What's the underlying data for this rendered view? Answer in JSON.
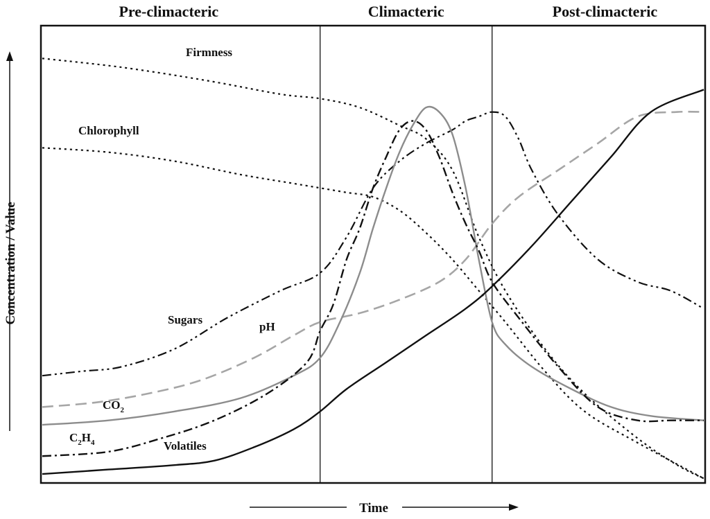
{
  "chart_data": {
    "type": "line",
    "title": "",
    "xlabel": "Time",
    "ylabel": "Concentration / Value",
    "xlim": [
      0,
      100
    ],
    "ylim": [
      0,
      100
    ],
    "grid": false,
    "phases": [
      {
        "label": "Pre-climacteric",
        "start": 0,
        "end": 42
      },
      {
        "label": "Climacteric",
        "start": 42,
        "end": 68
      },
      {
        "label": "Post-climacteric",
        "start": 68,
        "end": 100
      }
    ],
    "series": [
      {
        "name": "Firmness",
        "label": "Firmness",
        "style": "dotted",
        "color": "#111111",
        "x": [
          0,
          12,
          25,
          36,
          42,
          48,
          54,
          58,
          62,
          66,
          70,
          76,
          82,
          90,
          96,
          100
        ],
        "y": [
          95,
          93,
          90,
          87,
          86,
          84,
          80,
          77,
          70,
          55,
          43,
          30,
          20,
          10,
          4,
          1
        ]
      },
      {
        "name": "Chlorophyll",
        "label": "Chlorophyll",
        "style": "dotted",
        "color": "#111111",
        "x": [
          0,
          10,
          20,
          30,
          38,
          42,
          46,
          50,
          54,
          58,
          62,
          66,
          70,
          76,
          82,
          90,
          100
        ],
        "y": [
          75,
          74,
          72,
          69,
          67,
          66,
          65,
          64,
          61,
          56,
          50,
          43,
          36,
          25,
          16,
          9,
          1
        ]
      },
      {
        "name": "Sugars",
        "label": "Sugars",
        "style": "dash-dot-dot",
        "color": "#111111",
        "x": [
          0,
          6,
          12,
          20,
          28,
          36,
          42,
          46,
          50,
          54,
          58,
          62,
          64,
          66,
          68,
          70,
          72,
          74,
          78,
          84,
          90,
          95,
          100
        ],
        "y": [
          24,
          25,
          26,
          30,
          37,
          43,
          47,
          55,
          66,
          72,
          76,
          79,
          81,
          82,
          83,
          82,
          77,
          70,
          60,
          50,
          45,
          43,
          39
        ]
      },
      {
        "name": "pH",
        "label": "pH",
        "style": "long-dash",
        "color": "#a6a6a6",
        "x": [
          0,
          8,
          16,
          24,
          32,
          38,
          42,
          48,
          54,
          60,
          64,
          68,
          72,
          78,
          84,
          90,
          96,
          100
        ],
        "y": [
          17,
          18,
          20,
          23,
          28,
          33,
          36,
          38,
          41,
          45,
          50,
          58,
          64,
          70,
          76,
          82,
          83,
          83
        ]
      },
      {
        "name": "CO2",
        "label": "CO",
        "label_sub": "2",
        "style": "solid",
        "color": "#8c8c8c",
        "x": [
          0,
          10,
          20,
          30,
          38,
          42,
          45,
          48,
          50,
          52,
          54,
          56,
          58,
          60,
          62,
          64,
          66,
          68,
          70,
          74,
          80,
          86,
          92,
          100
        ],
        "y": [
          13,
          14,
          16,
          19,
          24,
          28,
          36,
          47,
          57,
          66,
          74,
          80,
          84,
          83,
          78,
          66,
          50,
          36,
          31,
          26,
          21,
          17,
          15,
          14
        ]
      },
      {
        "name": "C2H4",
        "label": "C",
        "label_sub": "2",
        "label_mid": "H",
        "label_sub2": "4",
        "style": "dash-dot",
        "color": "#111111",
        "x": [
          0,
          10,
          18,
          26,
          34,
          40,
          42,
          44,
          46,
          48,
          50,
          52,
          54,
          56,
          58,
          60,
          62,
          64,
          66,
          68,
          72,
          78,
          84,
          90,
          95,
          100
        ],
        "y": [
          6,
          7,
          10,
          14,
          20,
          27,
          34,
          40,
          50,
          57,
          66,
          73,
          79,
          81,
          79,
          73,
          65,
          58,
          52,
          45,
          37,
          26,
          17,
          14,
          14,
          14
        ]
      },
      {
        "name": "Volatiles",
        "label": "Volatiles",
        "style": "solid",
        "color": "#111111",
        "x": [
          0,
          10,
          20,
          26,
          32,
          38,
          42,
          46,
          52,
          58,
          64,
          68,
          74,
          80,
          86,
          92,
          100
        ],
        "y": [
          2,
          3,
          4,
          5,
          8,
          12,
          16,
          21,
          27,
          33,
          39,
          44,
          53,
          63,
          73,
          83,
          88
        ]
      }
    ]
  }
}
